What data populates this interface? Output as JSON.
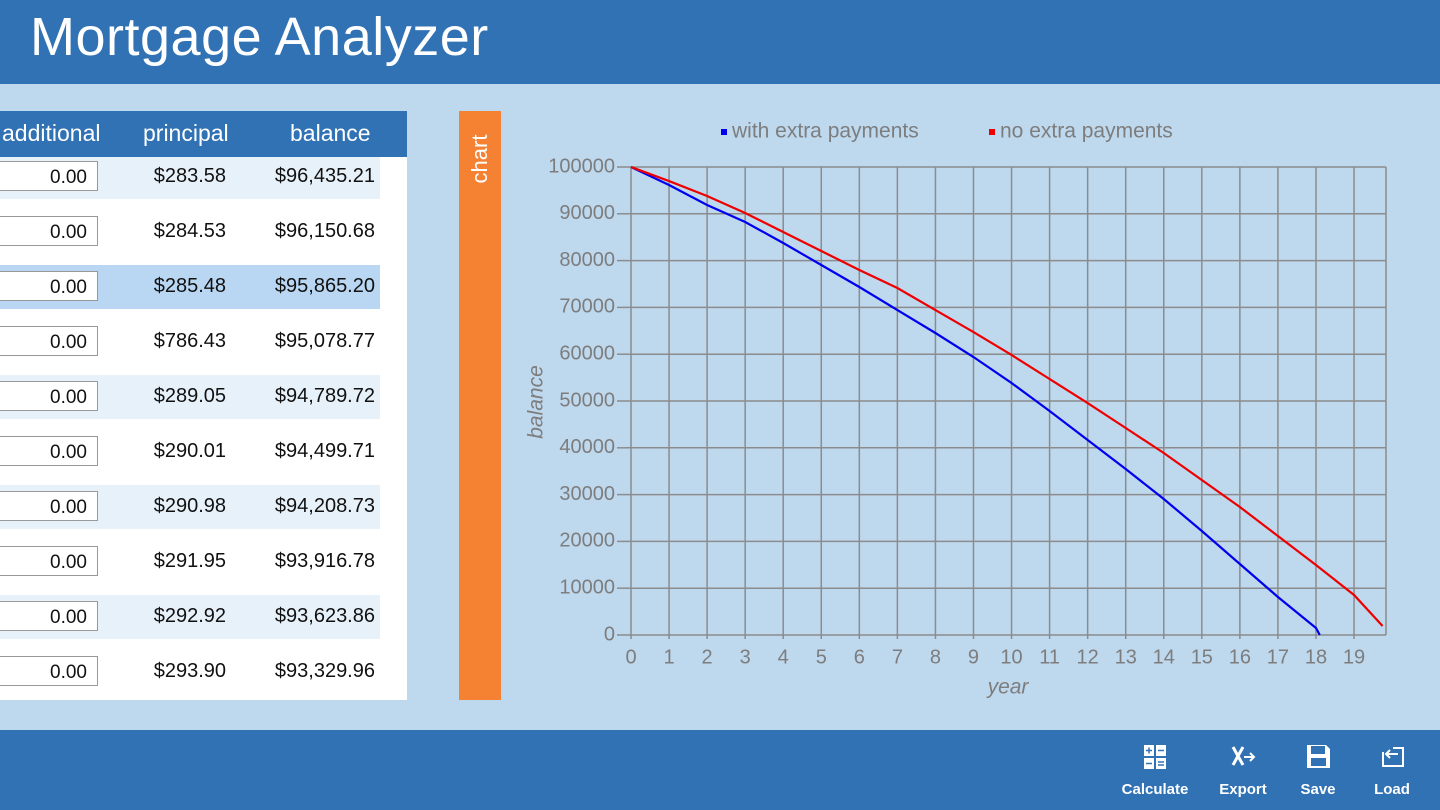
{
  "header": {
    "title": "Mortgage Analyzer"
  },
  "table": {
    "columns": [
      "additional",
      "principal",
      "balance"
    ],
    "rows": [
      [
        "0.00",
        "$283.58",
        "$96,435.21"
      ],
      [
        "0.00",
        "$284.53",
        "$96,150.68"
      ],
      [
        "0.00",
        "$285.48",
        "$95,865.20"
      ],
      [
        "0.00",
        "$786.43",
        "$95,078.77"
      ],
      [
        "0.00",
        "$289.05",
        "$94,789.72"
      ],
      [
        "0.00",
        "$290.01",
        "$94,499.71"
      ],
      [
        "0.00",
        "$290.98",
        "$94,208.73"
      ],
      [
        "0.00",
        "$291.95",
        "$93,916.78"
      ],
      [
        "0.00",
        "$292.92",
        "$93,623.86"
      ],
      [
        "0.00",
        "$293.90",
        "$93,329.96"
      ]
    ]
  },
  "chart_tab": {
    "label": "chart"
  },
  "chart_data": {
    "type": "line",
    "x_label": "year",
    "y_label": "balance",
    "xlim": [
      0,
      19.84
    ],
    "xticks": [
      0,
      1,
      2,
      3,
      4,
      5,
      6,
      7,
      8,
      9,
      10,
      11,
      12,
      13,
      14,
      15,
      16,
      17,
      18,
      19
    ],
    "ylim": [
      0,
      100000
    ],
    "yticks": [
      0,
      10000,
      20000,
      30000,
      40000,
      50000,
      60000,
      70000,
      80000,
      90000,
      100000
    ],
    "grid": true,
    "legend": "top",
    "series": [
      {
        "name": "with extra payments",
        "color": "#0000ee",
        "x": [
          0,
          1,
          2,
          3,
          4,
          5,
          6,
          7,
          8,
          9,
          10,
          11,
          12,
          13,
          14,
          15,
          16,
          17,
          18,
          18.1
        ],
        "values": [
          100000,
          96150,
          91880,
          88250,
          83760,
          79060,
          74360,
          69440,
          64530,
          59400,
          53850,
          47860,
          41670,
          35470,
          29060,
          22220,
          15170,
          8120,
          1500,
          0
        ]
      },
      {
        "name": "no extra payments",
        "color": "#ee0000",
        "x": [
          0,
          1,
          2,
          3,
          4,
          5,
          6,
          7,
          8,
          9,
          10,
          11,
          12,
          13,
          14,
          15,
          16,
          17,
          18,
          19,
          19.75
        ],
        "values": [
          100000,
          97000,
          93800,
          90170,
          86110,
          82050,
          78000,
          74140,
          69440,
          64740,
          59830,
          54700,
          49570,
          44230,
          38890,
          33120,
          27350,
          21150,
          14960,
          8550,
          1920
        ]
      }
    ]
  },
  "app_bar": {
    "buttons": [
      "Calculate",
      "Export",
      "Save",
      "Load"
    ]
  }
}
